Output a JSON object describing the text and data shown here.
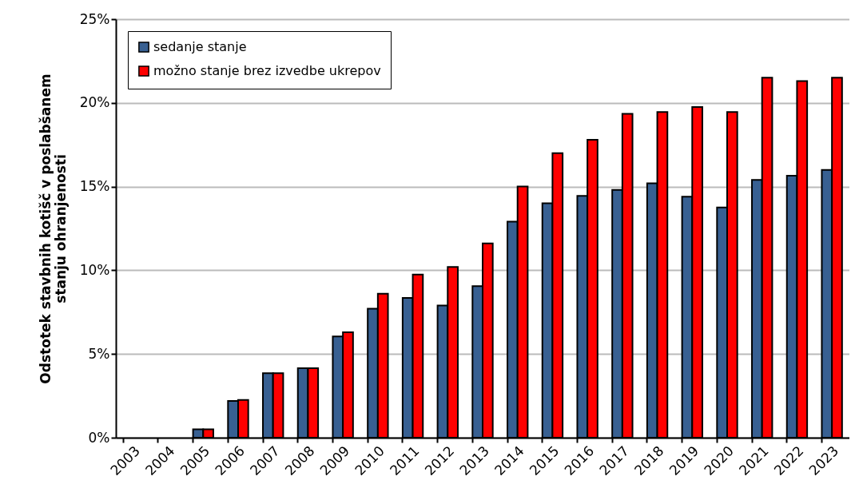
{
  "chart_data": {
    "type": "bar",
    "ylabel": "Odstotek stavbnih kotišč v poslabšanem\nstanju ohranjenosti",
    "categories": [
      "2003",
      "2004",
      "2005",
      "2006",
      "2007",
      "2008",
      "2009",
      "2010",
      "2011",
      "2012",
      "2013",
      "2014",
      "2015",
      "2016",
      "2017",
      "2018",
      "2019",
      "2020",
      "2021",
      "2022",
      "2023"
    ],
    "series": [
      {
        "name": "sedanje stanje",
        "color": "#386092",
        "values": [
          null,
          null,
          0.5,
          2.2,
          3.85,
          4.15,
          6.05,
          7.7,
          8.35,
          7.9,
          9.05,
          12.9,
          14.0,
          14.45,
          14.8,
          15.2,
          14.4,
          13.75,
          15.4,
          15.65,
          16.0
        ]
      },
      {
        "name": "možno stanje brez izvedbe ukrepov",
        "color": "#ff0000",
        "values": [
          null,
          null,
          0.5,
          2.25,
          3.85,
          4.15,
          6.3,
          8.6,
          9.75,
          10.2,
          11.6,
          15.0,
          17.0,
          17.8,
          19.35,
          19.45,
          19.75,
          19.45,
          21.5,
          21.3,
          21.5
        ]
      }
    ],
    "ylim": [
      0,
      25
    ],
    "yticks": [
      {
        "value": 0,
        "label": "0%"
      },
      {
        "value": 5,
        "label": "5%"
      },
      {
        "value": 10,
        "label": "10%"
      },
      {
        "value": 15,
        "label": "15%"
      },
      {
        "value": 20,
        "label": "20%"
      },
      {
        "value": 25,
        "label": "25%"
      }
    ],
    "grid": "y",
    "legend": "top left"
  }
}
